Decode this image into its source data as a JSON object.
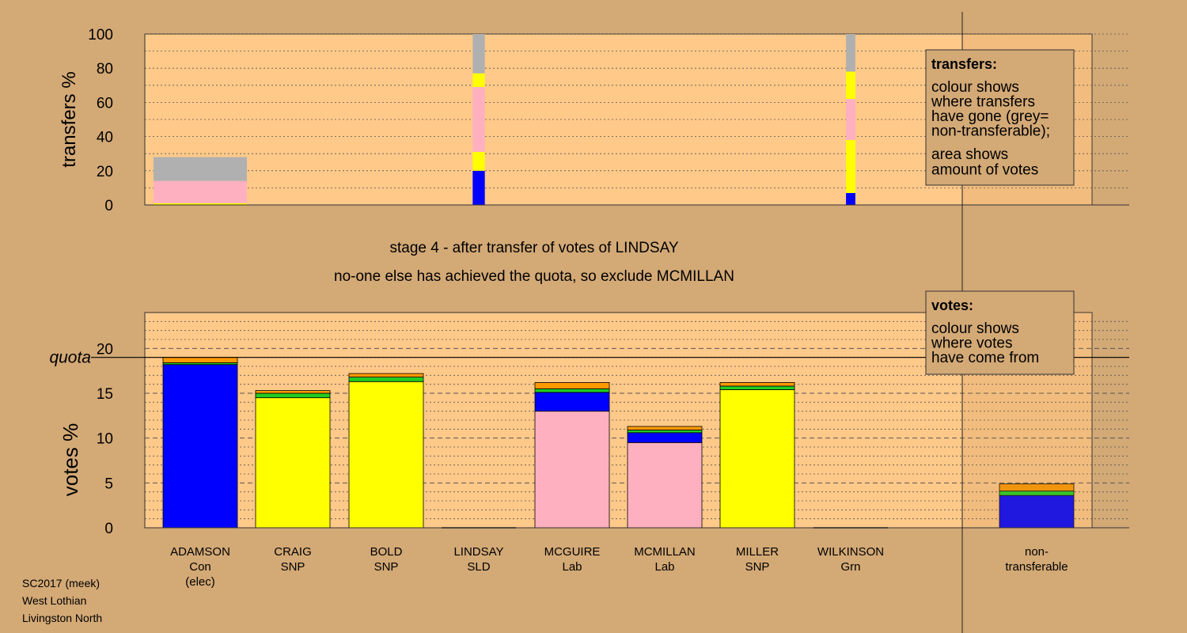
{
  "colors": {
    "background": "#d3a976",
    "panel": "#ffc989",
    "Con": "#0000ff",
    "SNP": "#ffff00",
    "Lab": "#ffb0c0",
    "SLD": "#ff9900",
    "Grn": "#22cc22",
    "grey": "#b0b0b0"
  },
  "header": {
    "stage_line": "stage 4 - after transfer of votes of LINDSAY",
    "status_line": "no-one else has achieved the quota, so exclude MCMILLAN"
  },
  "footer": {
    "line1": "SC2017 (meek)",
    "line2": "West Lothian",
    "line3": "Livingston North"
  },
  "chart_data": [
    {
      "type": "bar",
      "title": "transfers",
      "ylabel": "transfers %",
      "ylim": [
        0,
        100
      ],
      "yticks": [
        0,
        20,
        40,
        60,
        80,
        100
      ],
      "grid": true,
      "categories": [
        "ADAMSON",
        "LINDSAY",
        "WILKINSON"
      ],
      "bar_width_relative": [
        1.0,
        0.13,
        0.1
      ],
      "stacks": [
        [
          {
            "party": "SNP",
            "from": 0,
            "to": 1
          },
          {
            "party": "Lab",
            "from": 1,
            "to": 14
          },
          {
            "party": "grey",
            "from": 14,
            "to": 28
          }
        ],
        [
          {
            "party": "Con",
            "from": 0,
            "to": 20
          },
          {
            "party": "SNP",
            "from": 20,
            "to": 31
          },
          {
            "party": "Lab",
            "from": 31,
            "to": 69
          },
          {
            "party": "SNP",
            "from": 69,
            "to": 77
          },
          {
            "party": "grey",
            "from": 77,
            "to": 100
          }
        ],
        [
          {
            "party": "Con",
            "from": 0,
            "to": 7
          },
          {
            "party": "SNP",
            "from": 7,
            "to": 38
          },
          {
            "party": "Lab",
            "from": 38,
            "to": 62
          },
          {
            "party": "SNP",
            "from": 62,
            "to": 78
          },
          {
            "party": "grey",
            "from": 78,
            "to": 100
          }
        ]
      ],
      "legend": {
        "title": "transfers:",
        "lines": [
          "colour shows",
          "where transfers",
          "have gone (grey=",
          "non-transferable);"
        ],
        "lines2": [
          "area shows",
          "amount of votes"
        ]
      }
    },
    {
      "type": "bar",
      "title": "votes",
      "ylabel": "votes %",
      "ylim": [
        0,
        24
      ],
      "yticks": [
        0,
        5,
        10,
        15,
        20
      ],
      "quota": 19.0,
      "quota_label": "quota",
      "grid": true,
      "categories": [
        "ADAMSON",
        "CRAIG",
        "BOLD",
        "LINDSAY",
        "MCGUIRE",
        "MCMILLAN",
        "MILLER",
        "WILKINSON",
        "non-transferable"
      ],
      "labels": [
        [
          "ADAMSON",
          "Con",
          "(elec)"
        ],
        [
          "CRAIG",
          "SNP"
        ],
        [
          "BOLD",
          "SNP"
        ],
        [
          "LINDSAY",
          "SLD"
        ],
        [
          "MCGUIRE",
          "Lab"
        ],
        [
          "MCMILLAN",
          "Lab"
        ],
        [
          "MILLER",
          "SNP"
        ],
        [
          "WILKINSON",
          "Grn"
        ],
        [
          "non-",
          "transferable"
        ]
      ],
      "stacks": [
        [
          {
            "party": "Con",
            "value": 18.2
          },
          {
            "party": "Grn",
            "value": 0.2
          },
          {
            "party": "SLD",
            "value": 0.6
          }
        ],
        [
          {
            "party": "SNP",
            "value": 14.5
          },
          {
            "party": "Grn",
            "value": 0.5
          },
          {
            "party": "SLD",
            "value": 0.3
          }
        ],
        [
          {
            "party": "SNP",
            "value": 16.3
          },
          {
            "party": "Grn",
            "value": 0.5
          },
          {
            "party": "SLD",
            "value": 0.4
          }
        ],
        [],
        [
          {
            "party": "Lab",
            "value": 13.0
          },
          {
            "party": "Con",
            "value": 2.1
          },
          {
            "party": "Grn",
            "value": 0.4
          },
          {
            "party": "SLD",
            "value": 0.7
          }
        ],
        [
          {
            "party": "Lab",
            "value": 9.5
          },
          {
            "party": "Con",
            "value": 1.1
          },
          {
            "party": "Grn",
            "value": 0.3
          },
          {
            "party": "SLD",
            "value": 0.4
          }
        ],
        [
          {
            "party": "SNP",
            "value": 15.4
          },
          {
            "party": "Grn",
            "value": 0.4
          },
          {
            "party": "SLD",
            "value": 0.4
          }
        ],
        [],
        [
          {
            "party": "Con",
            "value": 3.6
          },
          {
            "party": "Grn",
            "value": 0.5
          },
          {
            "party": "SLD",
            "value": 0.8
          }
        ]
      ],
      "legend": {
        "title": "votes:",
        "lines": [
          "colour shows",
          "where votes",
          "have come from"
        ]
      }
    }
  ]
}
